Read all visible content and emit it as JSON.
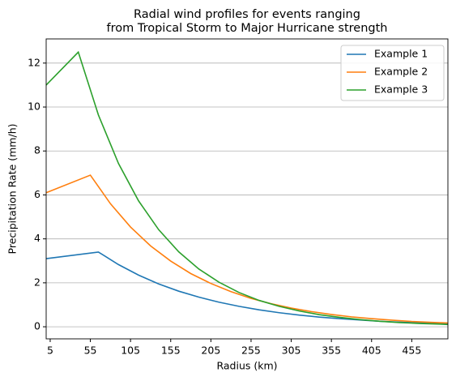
{
  "chart_data": {
    "type": "line",
    "title": [
      "Radial wind profiles for events ranging",
      "from Tropical Storm to Major Hurricane strength"
    ],
    "x_label": "Radius (km)",
    "y_label": "Precipitation Rate (mm/h)",
    "xlim": [
      0,
      500
    ],
    "ylim": [
      -0.55,
      13.1
    ],
    "xticks": [
      5,
      55,
      105,
      155,
      205,
      255,
      305,
      355,
      405,
      455
    ],
    "yticks": [
      0,
      2,
      4,
      6,
      8,
      10,
      12
    ],
    "grid": "y",
    "legend": "upper right",
    "series": [
      {
        "name": "Example 1",
        "color": "#1f77b4",
        "x": [
          0,
          65,
          90,
          115,
          140,
          165,
          190,
          215,
          240,
          265,
          290,
          315,
          340,
          365,
          390,
          415,
          440,
          465,
          490,
          500
        ],
        "values": [
          3.1,
          3.4,
          2.83,
          2.35,
          1.95,
          1.62,
          1.35,
          1.12,
          0.93,
          0.77,
          0.64,
          0.53,
          0.44,
          0.37,
          0.31,
          0.25,
          0.21,
          0.18,
          0.15,
          0.14
        ]
      },
      {
        "name": "Example 2",
        "color": "#ff7f0e",
        "x": [
          0,
          55,
          80,
          105,
          130,
          155,
          180,
          205,
          230,
          255,
          280,
          305,
          330,
          355,
          380,
          405,
          430,
          455,
          480,
          500
        ],
        "values": [
          6.1,
          6.9,
          5.6,
          4.54,
          3.68,
          2.99,
          2.42,
          1.97,
          1.6,
          1.29,
          1.05,
          0.85,
          0.69,
          0.56,
          0.45,
          0.37,
          0.3,
          0.24,
          0.2,
          0.17
        ]
      },
      {
        "name": "Example 3",
        "color": "#2ca02c",
        "x": [
          0,
          40,
          65,
          90,
          115,
          140,
          165,
          190,
          215,
          240,
          265,
          290,
          315,
          340,
          365,
          390,
          415,
          440,
          465,
          490,
          500
        ],
        "values": [
          11.0,
          12.5,
          9.64,
          7.43,
          5.73,
          4.42,
          3.41,
          2.63,
          2.03,
          1.56,
          1.2,
          0.93,
          0.72,
          0.55,
          0.43,
          0.33,
          0.25,
          0.19,
          0.15,
          0.12,
          0.1
        ]
      }
    ]
  }
}
